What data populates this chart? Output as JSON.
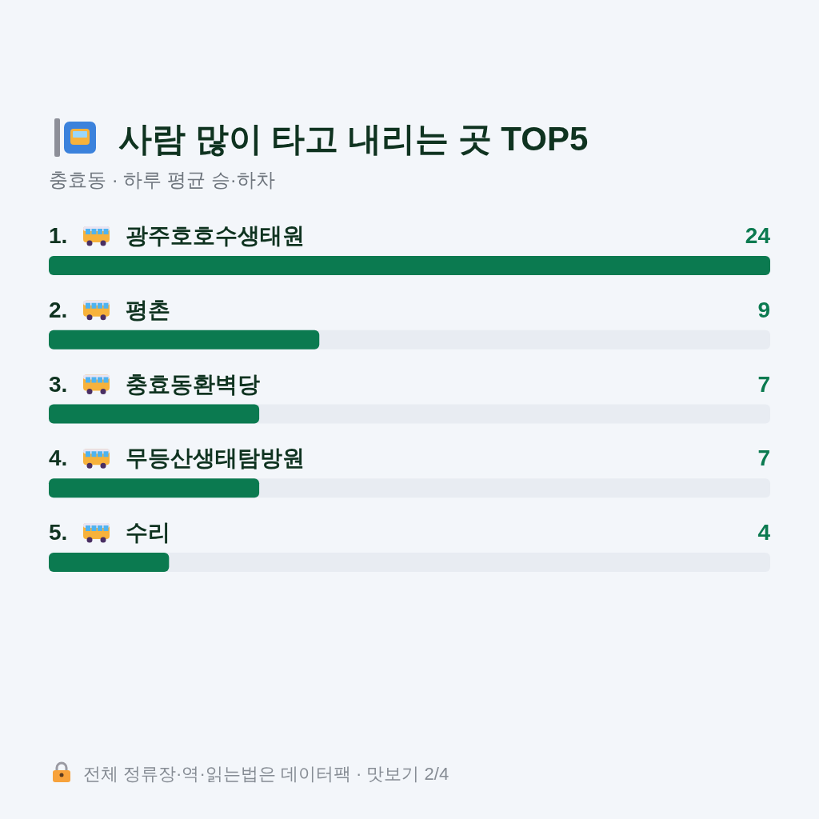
{
  "chart_data": {
    "type": "bar",
    "orientation": "horizontal",
    "title": "사람 많이 타고 내리는 곳 TOP5",
    "subtitle": "충효동 · 하루 평균 승·하차",
    "categories": [
      "1. 광주호호수생태원",
      "2. 평촌",
      "3. 충효동환벽당",
      "4. 무등산생태탐방원",
      "5. 수리"
    ],
    "values": [
      24,
      9,
      7,
      7,
      4
    ],
    "color": "#0b7a50",
    "data_labels": true,
    "annotations": [
      "전체 정류장·역·읽는법은 데이터팩 · 맛보기 2/4"
    ]
  }
}
